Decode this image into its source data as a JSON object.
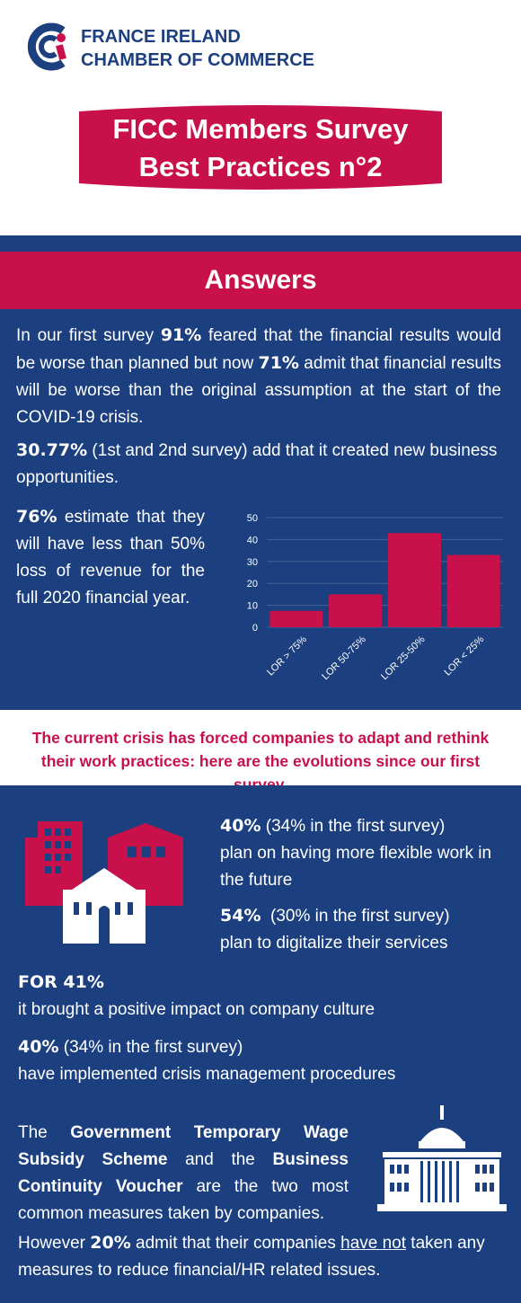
{
  "header": {
    "org_line1": "FRANCE IRELAND",
    "org_line2": "CHAMBER OF COMMERCE",
    "banner_line1": "FICC Members Survey",
    "banner_line2": "Best Practices n°2"
  },
  "answers": {
    "title": "Answers",
    "p1": {
      "t1": "In our first survey ",
      "n1": "91%",
      "t2": " feared that the financial results would be worse than planned but now ",
      "n2": "71%",
      "t3": " admit that financial results will be worse than the original assumption at the start of the COVID-19 crisis."
    },
    "p2": {
      "n1": "30.77%",
      "t1": " (1st and 2nd survey) add that it created new business opportunities."
    },
    "p3": {
      "n1": "76%",
      "t1": " estimate that they will have less than 50% loss of revenue for the full 2020 financial year."
    }
  },
  "chart_data": {
    "type": "bar",
    "categories": [
      "LOR > 75%",
      "LOR 50-75%",
      "LOR 25-50%",
      "LOR < 25%"
    ],
    "values": [
      7.5,
      15,
      43,
      33
    ],
    "ylim": [
      0,
      50
    ],
    "yticks": [
      "0",
      "10",
      "20",
      "30",
      "40",
      "50"
    ],
    "title": "",
    "xlabel": "",
    "ylabel": "",
    "bar_color": "#c8104a",
    "grid": true
  },
  "crisis_note": "The current crisis has forced companies to adapt and rethink their work practices: here are the evolutions since our first survey.",
  "evolutions": {
    "e1": {
      "num": "40%",
      "note": " (34% in the first survey)",
      "text": "plan on having more flexible work in the future"
    },
    "e2": {
      "num": "54%",
      "note": "  (30% in the first survey)",
      "text": "plan to digitalize their services"
    },
    "e3": {
      "num": "FOR 41%",
      "text": "it brought a positive impact on company culture"
    },
    "e4": {
      "num": "40%",
      "note": " (34% in the first survey)",
      "text": "have implemented crisis management procedures"
    }
  },
  "measures": {
    "t1": "The ",
    "b1": "Government Temporary Wage Subsidy Scheme",
    "t2": " and the ",
    "b2": "Business Continuity Voucher",
    "t3": " are the two most common measures taken by companies."
  },
  "closing": {
    "t1": "However ",
    "n1": "20%",
    "t2": " admit that their companies ",
    "u1": "have not",
    "t3": " taken any measures to reduce financial/HR related issues."
  },
  "icons": [
    "logo-icon",
    "buildings-icon",
    "government-building-icon"
  ],
  "colors": {
    "navy": "#1b3f7f",
    "crimson": "#c8104a",
    "white": "#ffffff"
  }
}
